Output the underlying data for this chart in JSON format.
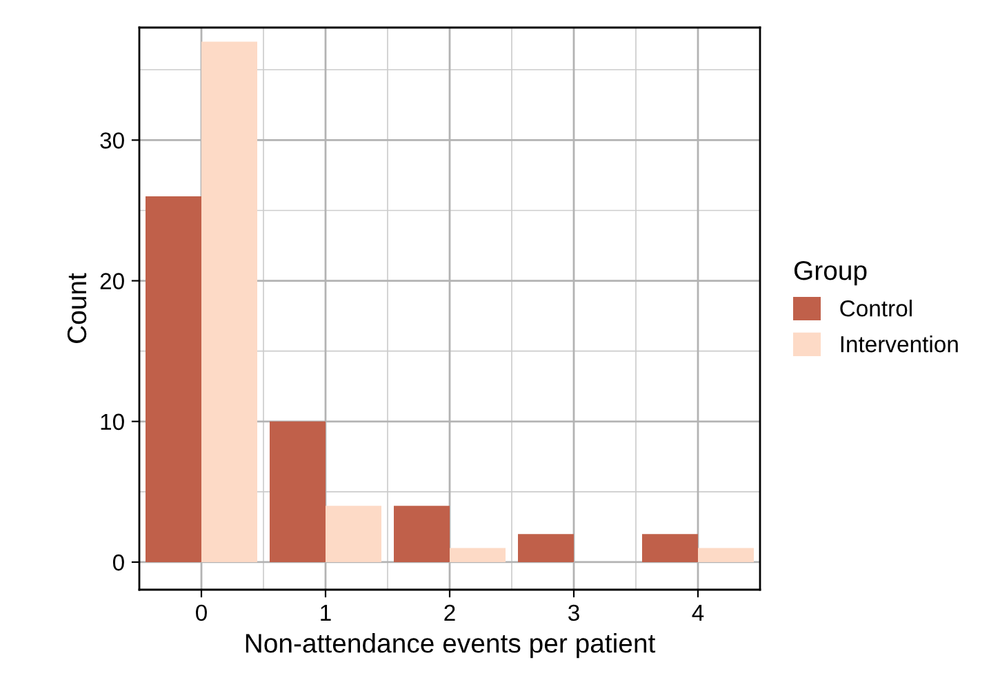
{
  "chart_data": {
    "type": "bar",
    "xlabel": "Non-attendance events per patient",
    "ylabel": "Count",
    "legend_title": "Group",
    "categories": [
      "0",
      "1",
      "2",
      "3",
      "4"
    ],
    "series": [
      {
        "name": "Control",
        "color": "#c0604a",
        "values": [
          26,
          10,
          4,
          2,
          2
        ]
      },
      {
        "name": "Intervention",
        "color": "#fddac6",
        "values": [
          37,
          4,
          1,
          0,
          1
        ]
      }
    ],
    "ylim": [
      -1.96,
      38.0
    ],
    "yticks": [
      0,
      10,
      20,
      30
    ],
    "grid": true,
    "legend": "right"
  }
}
